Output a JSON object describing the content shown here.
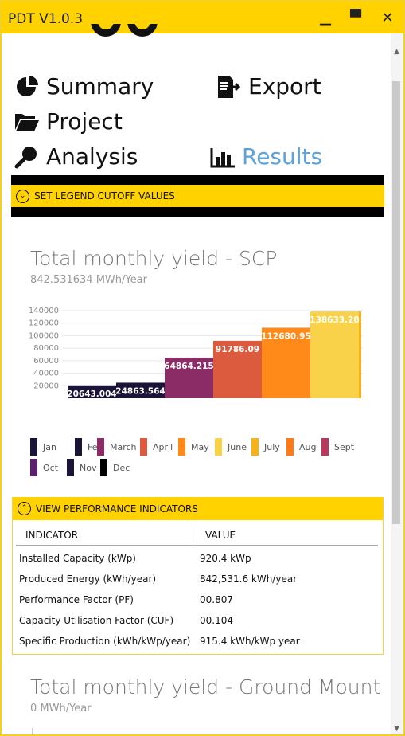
{
  "window": {
    "title": "PDT V1.0.3",
    "minimize_glyph": "▁",
    "maximize_glyph": "▀",
    "close_glyph": "✕"
  },
  "nav": {
    "summary": "Summary",
    "export": "Export",
    "project": "Project",
    "analysis": "Analysis",
    "results": "Results"
  },
  "legend_cutoff": {
    "label": "SET LEGEND CUTOFF VALUES",
    "glyph": "⌄"
  },
  "chart_data": [
    {
      "type": "bar",
      "title": "Total monthly yield - SCP",
      "subtitle": "842.531634 MWh/Year",
      "categories": [
        "Jan",
        "Feb",
        "March",
        "April",
        "May",
        "June",
        "July",
        "Aug",
        "Sept",
        "Oct",
        "Nov",
        "Dec"
      ],
      "bars_shown": [
        {
          "value": 20643.004,
          "label": "20643.004",
          "color": "#1b1437"
        },
        {
          "value": 24863.564,
          "label": "24863.564",
          "color": "#1b1437"
        },
        {
          "value": 64864.215,
          "label": "64864.215",
          "color": "#8c2c66"
        },
        {
          "value": 91786.09,
          "label": "91786.09",
          "color": "#dc5a3e"
        },
        {
          "value": 112680.95,
          "label": "112680.95",
          "color": "#ff8a1a"
        },
        {
          "value": 138633.28,
          "label": "138633.28",
          "color": "#f9d24a"
        }
      ],
      "yticks": [
        20000,
        40000,
        60000,
        80000,
        100000,
        120000,
        140000
      ],
      "ylim": [
        0,
        140000
      ],
      "grid": true,
      "legend_position": "bottom",
      "legend_colors": [
        "#1b1437",
        "#1b1437",
        "#8c2c66",
        "#dc5a3e",
        "#ff8a1a",
        "#f9d24a",
        "#f7b21a",
        "#ff7a18",
        "#b63a5e",
        "#5a1f6e",
        "#1b1437",
        "#000000"
      ]
    },
    {
      "type": "bar",
      "title": "Total monthly yield - Ground Mount",
      "subtitle": "0 MWh/Year"
    }
  ],
  "performance": {
    "toggle_label": "VIEW PERFORMANCE INDICATORS",
    "glyph": "⌃",
    "col_indicator": "INDICATOR",
    "col_value": "VALUE",
    "rows": [
      {
        "indicator": "Installed Capacity (kWp)",
        "value": "920.4 kWp"
      },
      {
        "indicator": "Produced Energy (kWh/year)",
        "value": "842,531.6 kWh/year"
      },
      {
        "indicator": "Performance Factor (PF)",
        "value": "00.807"
      },
      {
        "indicator": "Capacity Utilisation Factor (CUF)",
        "value": "00.104"
      },
      {
        "indicator": "Specific Production (kWh/kWp/year)",
        "value": "915.4 kWh/kWp year"
      }
    ]
  },
  "scrollbar": {
    "up_glyph": "▲",
    "down_glyph": "▼"
  }
}
